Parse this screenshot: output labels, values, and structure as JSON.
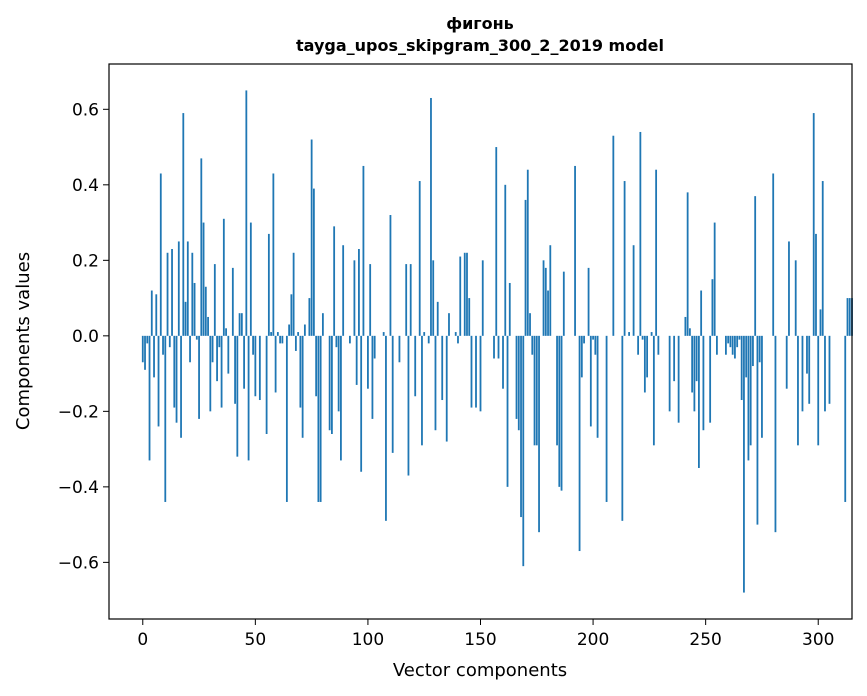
{
  "chart_data": {
    "type": "bar",
    "title": "фигонь",
    "subtitle": "tayga_upos_skipgram_300_2_2019 model",
    "xlabel": "Vector components",
    "ylabel": "Components values",
    "xlim": [
      -15,
      315
    ],
    "ylim": [
      -0.75,
      0.72
    ],
    "xticks": [
      0,
      50,
      100,
      150,
      200,
      250,
      300
    ],
    "yticks": [
      -0.6,
      -0.4,
      -0.2,
      0.0,
      0.2,
      0.4,
      0.6
    ],
    "xtick_labels": [
      "0",
      "50",
      "100",
      "150",
      "200",
      "250",
      "300"
    ],
    "ytick_labels": [
      "−0.6",
      "−0.4",
      "−0.2",
      "0.0",
      "0.2",
      "0.4",
      "0.6"
    ],
    "grid": false,
    "bar_color": "#1f77b4",
    "values": [
      -0.07,
      -0.09,
      -0.02,
      -0.33,
      0.12,
      -0.11,
      0.11,
      -0.24,
      0.43,
      -0.05,
      -0.44,
      0.22,
      -0.03,
      0.23,
      -0.19,
      -0.23,
      0.25,
      -0.27,
      0.59,
      0.09,
      0.25,
      -0.07,
      0.22,
      0.14,
      -0.01,
      -0.22,
      0.47,
      0.3,
      0.13,
      0.05,
      -0.2,
      -0.07,
      0.19,
      -0.12,
      -0.03,
      -0.19,
      0.31,
      0.02,
      -0.1,
      0.0,
      0.18,
      -0.18,
      -0.32,
      0.06,
      0.06,
      -0.14,
      0.65,
      -0.33,
      0.3,
      -0.05,
      -0.16,
      0.0,
      -0.17,
      0.0,
      0.0,
      -0.26,
      0.27,
      0.01,
      0.43,
      -0.15,
      0.01,
      -0.02,
      -0.02,
      0.0,
      -0.44,
      0.03,
      0.11,
      0.22,
      -0.04,
      0.01,
      -0.19,
      -0.27,
      0.03,
      0.0,
      0.1,
      0.52,
      0.39,
      -0.16,
      -0.44,
      -0.44,
      0.06,
      0.0,
      0.0,
      -0.25,
      -0.26,
      0.29,
      -0.03,
      -0.2,
      -0.33,
      0.24,
      0.0,
      0.0,
      -0.02,
      0.0,
      0.2,
      -0.13,
      0.23,
      -0.36,
      0.45,
      0.0,
      -0.14,
      0.19,
      -0.22,
      -0.06,
      0.0,
      0.0,
      0.0,
      0.01,
      -0.49,
      0.0,
      0.32,
      -0.31,
      0.0,
      0.0,
      -0.07,
      0.0,
      0.0,
      0.19,
      -0.37,
      0.19,
      0.0,
      -0.16,
      0.0,
      0.41,
      -0.29,
      0.01,
      0.0,
      -0.02,
      0.63,
      0.2,
      -0.25,
      0.09,
      0.0,
      -0.17,
      0.0,
      -0.28,
      0.06,
      0.0,
      0.0,
      0.01,
      -0.02,
      0.21,
      0.0,
      0.22,
      0.22,
      0.1,
      -0.19,
      0.0,
      -0.19,
      0.0,
      -0.2,
      0.2,
      0.0,
      0.0,
      0.0,
      0.0,
      -0.06,
      0.5,
      -0.06,
      0.0,
      -0.14,
      0.4,
      -0.4,
      0.14,
      0.0,
      0.0,
      -0.22,
      -0.25,
      -0.48,
      -0.61,
      0.36,
      0.44,
      0.06,
      -0.05,
      -0.29,
      -0.29,
      -0.52,
      0.0,
      0.2,
      0.18,
      0.12,
      0.24,
      0.0,
      0.0,
      -0.29,
      -0.4,
      -0.41,
      0.17,
      0.0,
      0.0,
      0.0,
      0.0,
      0.45,
      0.0,
      -0.57,
      -0.11,
      -0.02,
      0.0,
      0.18,
      -0.24,
      -0.01,
      -0.05,
      -0.27,
      0.0,
      0.0,
      0.0,
      -0.44,
      0.0,
      0.0,
      0.53,
      0.0,
      0.0,
      0.0,
      -0.49,
      0.41,
      0.0,
      0.01,
      0.0,
      0.24,
      0.0,
      -0.05,
      0.54,
      -0.01,
      -0.15,
      -0.11,
      0.0,
      0.01,
      -0.29,
      0.44,
      -0.05,
      0.0,
      0.0,
      0.0,
      0.0,
      -0.2,
      0.0,
      -0.12,
      0.0,
      -0.23,
      0.0,
      0.0,
      0.05,
      0.38,
      0.02,
      -0.15,
      -0.2,
      -0.12,
      -0.35,
      0.12,
      -0.25,
      0.0,
      0.0,
      -0.23,
      0.15,
      0.3,
      -0.05,
      0.0,
      0.0,
      0.0,
      -0.05,
      -0.02,
      -0.03,
      -0.05,
      -0.06,
      -0.03,
      -0.01,
      -0.17,
      -0.68,
      -0.11,
      -0.33,
      -0.29,
      -0.08,
      0.37,
      -0.5,
      -0.07,
      -0.27,
      0.0,
      0.0,
      0.0,
      0.0,
      0.43,
      -0.52,
      0.0,
      0.0,
      0.0,
      0.0,
      -0.14,
      0.25,
      0.0,
      0.0,
      0.2,
      -0.29,
      0.0,
      -0.2,
      0.0,
      -0.1,
      -0.18,
      0.0,
      0.59,
      0.27,
      -0.29,
      0.07,
      0.41,
      -0.2,
      0.0,
      -0.18,
      0.0,
      0.0,
      0.0,
      0.0,
      0.0,
      0.0,
      -0.44,
      0.1,
      0.1,
      0.1
    ]
  }
}
